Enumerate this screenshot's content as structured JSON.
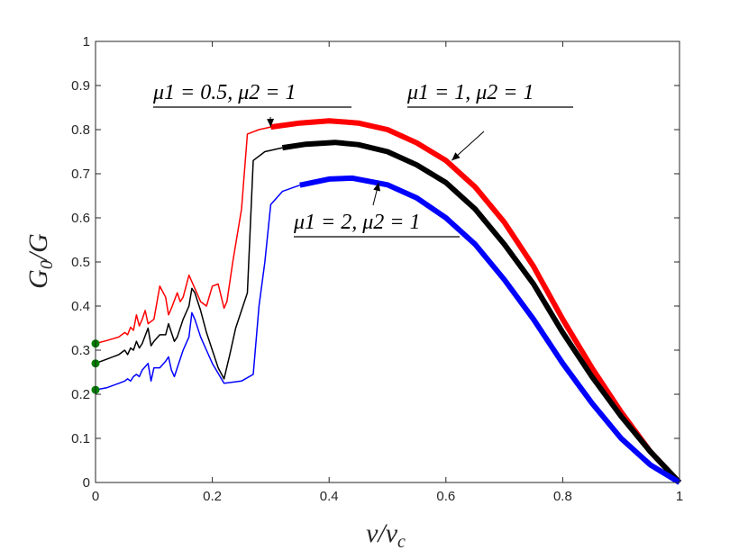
{
  "chart_data": {
    "type": "line",
    "xlabel": "v/v_c",
    "ylabel": "G_0/G",
    "xlim": [
      0,
      1
    ],
    "ylim": [
      0,
      1
    ],
    "xticks": [
      "0",
      "0.2",
      "0.4",
      "0.6",
      "0.8",
      "1"
    ],
    "yticks": [
      "0",
      "0.1",
      "0.2",
      "0.3",
      "0.4",
      "0.5",
      "0.6",
      "0.7",
      "0.8",
      "0.9",
      "1"
    ],
    "grid": false,
    "series": [
      {
        "name": "μ1 = 0.5, μ2 = 1",
        "color": "#ff0000",
        "thin": [
          [
            0,
            0.315
          ],
          [
            0.02,
            0.322
          ],
          [
            0.04,
            0.33
          ],
          [
            0.05,
            0.34
          ],
          [
            0.055,
            0.335
          ],
          [
            0.06,
            0.352
          ],
          [
            0.065,
            0.345
          ],
          [
            0.07,
            0.38
          ],
          [
            0.075,
            0.355
          ],
          [
            0.08,
            0.37
          ],
          [
            0.085,
            0.39
          ],
          [
            0.09,
            0.36
          ],
          [
            0.1,
            0.37
          ],
          [
            0.11,
            0.445
          ],
          [
            0.12,
            0.42
          ],
          [
            0.125,
            0.38
          ],
          [
            0.13,
            0.395
          ],
          [
            0.14,
            0.43
          ],
          [
            0.145,
            0.41
          ],
          [
            0.15,
            0.42
          ],
          [
            0.16,
            0.47
          ],
          [
            0.17,
            0.44
          ],
          [
            0.18,
            0.41
          ],
          [
            0.19,
            0.4
          ],
          [
            0.2,
            0.445
          ],
          [
            0.21,
            0.45
          ],
          [
            0.22,
            0.395
          ],
          [
            0.225,
            0.41
          ],
          [
            0.235,
            0.5
          ],
          [
            0.25,
            0.62
          ],
          [
            0.26,
            0.79
          ],
          [
            0.28,
            0.8
          ],
          [
            0.3,
            0.806
          ]
        ],
        "thick": [
          [
            0.3,
            0.806
          ],
          [
            0.35,
            0.815
          ],
          [
            0.4,
            0.82
          ],
          [
            0.45,
            0.815
          ],
          [
            0.5,
            0.8
          ],
          [
            0.55,
            0.77
          ],
          [
            0.6,
            0.73
          ],
          [
            0.65,
            0.67
          ],
          [
            0.7,
            0.59
          ],
          [
            0.75,
            0.49
          ],
          [
            0.8,
            0.37
          ],
          [
            0.85,
            0.26
          ],
          [
            0.9,
            0.16
          ],
          [
            0.95,
            0.07
          ],
          [
            1,
            0
          ]
        ]
      },
      {
        "name": "μ1 = 1, μ2 = 1",
        "color": "#000000",
        "thin": [
          [
            0,
            0.27
          ],
          [
            0.02,
            0.28
          ],
          [
            0.04,
            0.29
          ],
          [
            0.05,
            0.3
          ],
          [
            0.055,
            0.29
          ],
          [
            0.06,
            0.305
          ],
          [
            0.065,
            0.3
          ],
          [
            0.07,
            0.32
          ],
          [
            0.075,
            0.305
          ],
          [
            0.08,
            0.315
          ],
          [
            0.09,
            0.35
          ],
          [
            0.095,
            0.31
          ],
          [
            0.1,
            0.32
          ],
          [
            0.11,
            0.335
          ],
          [
            0.12,
            0.335
          ],
          [
            0.125,
            0.36
          ],
          [
            0.13,
            0.34
          ],
          [
            0.135,
            0.32
          ],
          [
            0.14,
            0.33
          ],
          [
            0.15,
            0.37
          ],
          [
            0.16,
            0.4
          ],
          [
            0.165,
            0.44
          ],
          [
            0.17,
            0.43
          ],
          [
            0.18,
            0.39
          ],
          [
            0.19,
            0.34
          ],
          [
            0.2,
            0.3
          ],
          [
            0.21,
            0.26
          ],
          [
            0.22,
            0.235
          ],
          [
            0.23,
            0.29
          ],
          [
            0.24,
            0.35
          ],
          [
            0.25,
            0.39
          ],
          [
            0.26,
            0.43
          ],
          [
            0.27,
            0.73
          ],
          [
            0.29,
            0.75
          ],
          [
            0.32,
            0.759
          ]
        ],
        "thick": [
          [
            0.32,
            0.759
          ],
          [
            0.36,
            0.767
          ],
          [
            0.41,
            0.771
          ],
          [
            0.45,
            0.766
          ],
          [
            0.5,
            0.75
          ],
          [
            0.55,
            0.72
          ],
          [
            0.6,
            0.68
          ],
          [
            0.65,
            0.62
          ],
          [
            0.7,
            0.54
          ],
          [
            0.75,
            0.45
          ],
          [
            0.8,
            0.34
          ],
          [
            0.85,
            0.24
          ],
          [
            0.9,
            0.15
          ],
          [
            0.95,
            0.07
          ],
          [
            1,
            0
          ]
        ]
      },
      {
        "name": "μ1 = 2, μ2 = 1",
        "color": "#0000ff",
        "thin": [
          [
            0,
            0.21
          ],
          [
            0.02,
            0.215
          ],
          [
            0.04,
            0.225
          ],
          [
            0.05,
            0.23
          ],
          [
            0.055,
            0.235
          ],
          [
            0.06,
            0.23
          ],
          [
            0.065,
            0.24
          ],
          [
            0.07,
            0.245
          ],
          [
            0.075,
            0.24
          ],
          [
            0.08,
            0.255
          ],
          [
            0.09,
            0.27
          ],
          [
            0.095,
            0.23
          ],
          [
            0.1,
            0.26
          ],
          [
            0.11,
            0.26
          ],
          [
            0.12,
            0.275
          ],
          [
            0.125,
            0.285
          ],
          [
            0.13,
            0.255
          ],
          [
            0.135,
            0.24
          ],
          [
            0.14,
            0.26
          ],
          [
            0.15,
            0.3
          ],
          [
            0.16,
            0.33
          ],
          [
            0.165,
            0.385
          ],
          [
            0.17,
            0.37
          ],
          [
            0.18,
            0.33
          ],
          [
            0.19,
            0.3
          ],
          [
            0.2,
            0.27
          ],
          [
            0.22,
            0.225
          ],
          [
            0.25,
            0.23
          ],
          [
            0.27,
            0.245
          ],
          [
            0.28,
            0.4
          ],
          [
            0.29,
            0.5
          ],
          [
            0.3,
            0.63
          ],
          [
            0.32,
            0.66
          ],
          [
            0.35,
            0.674
          ]
        ],
        "thick": [
          [
            0.35,
            0.674
          ],
          [
            0.4,
            0.688
          ],
          [
            0.44,
            0.69
          ],
          [
            0.5,
            0.675
          ],
          [
            0.55,
            0.645
          ],
          [
            0.6,
            0.6
          ],
          [
            0.65,
            0.54
          ],
          [
            0.7,
            0.46
          ],
          [
            0.75,
            0.37
          ],
          [
            0.8,
            0.27
          ],
          [
            0.85,
            0.18
          ],
          [
            0.9,
            0.1
          ],
          [
            0.95,
            0.04
          ],
          [
            1,
            0
          ]
        ]
      }
    ],
    "markers": [
      {
        "x": 0,
        "y": 0.315,
        "color": "#007f00"
      },
      {
        "x": 0,
        "y": 0.27,
        "color": "#007f00"
      },
      {
        "x": 0,
        "y": 0.21,
        "color": "#007f00"
      }
    ],
    "annotations": [
      {
        "label": "μ1 = 0.5, μ2 = 1",
        "series": 0,
        "arrow_to": [
          0.3,
          0.806
        ]
      },
      {
        "label": "μ1 = 1, μ2 = 1",
        "series": 1,
        "arrow_to": [
          0.61,
          0.73
        ]
      },
      {
        "label": "μ1 = 2, μ2 = 1",
        "series": 2,
        "arrow_to": [
          0.485,
          0.68
        ]
      }
    ]
  }
}
